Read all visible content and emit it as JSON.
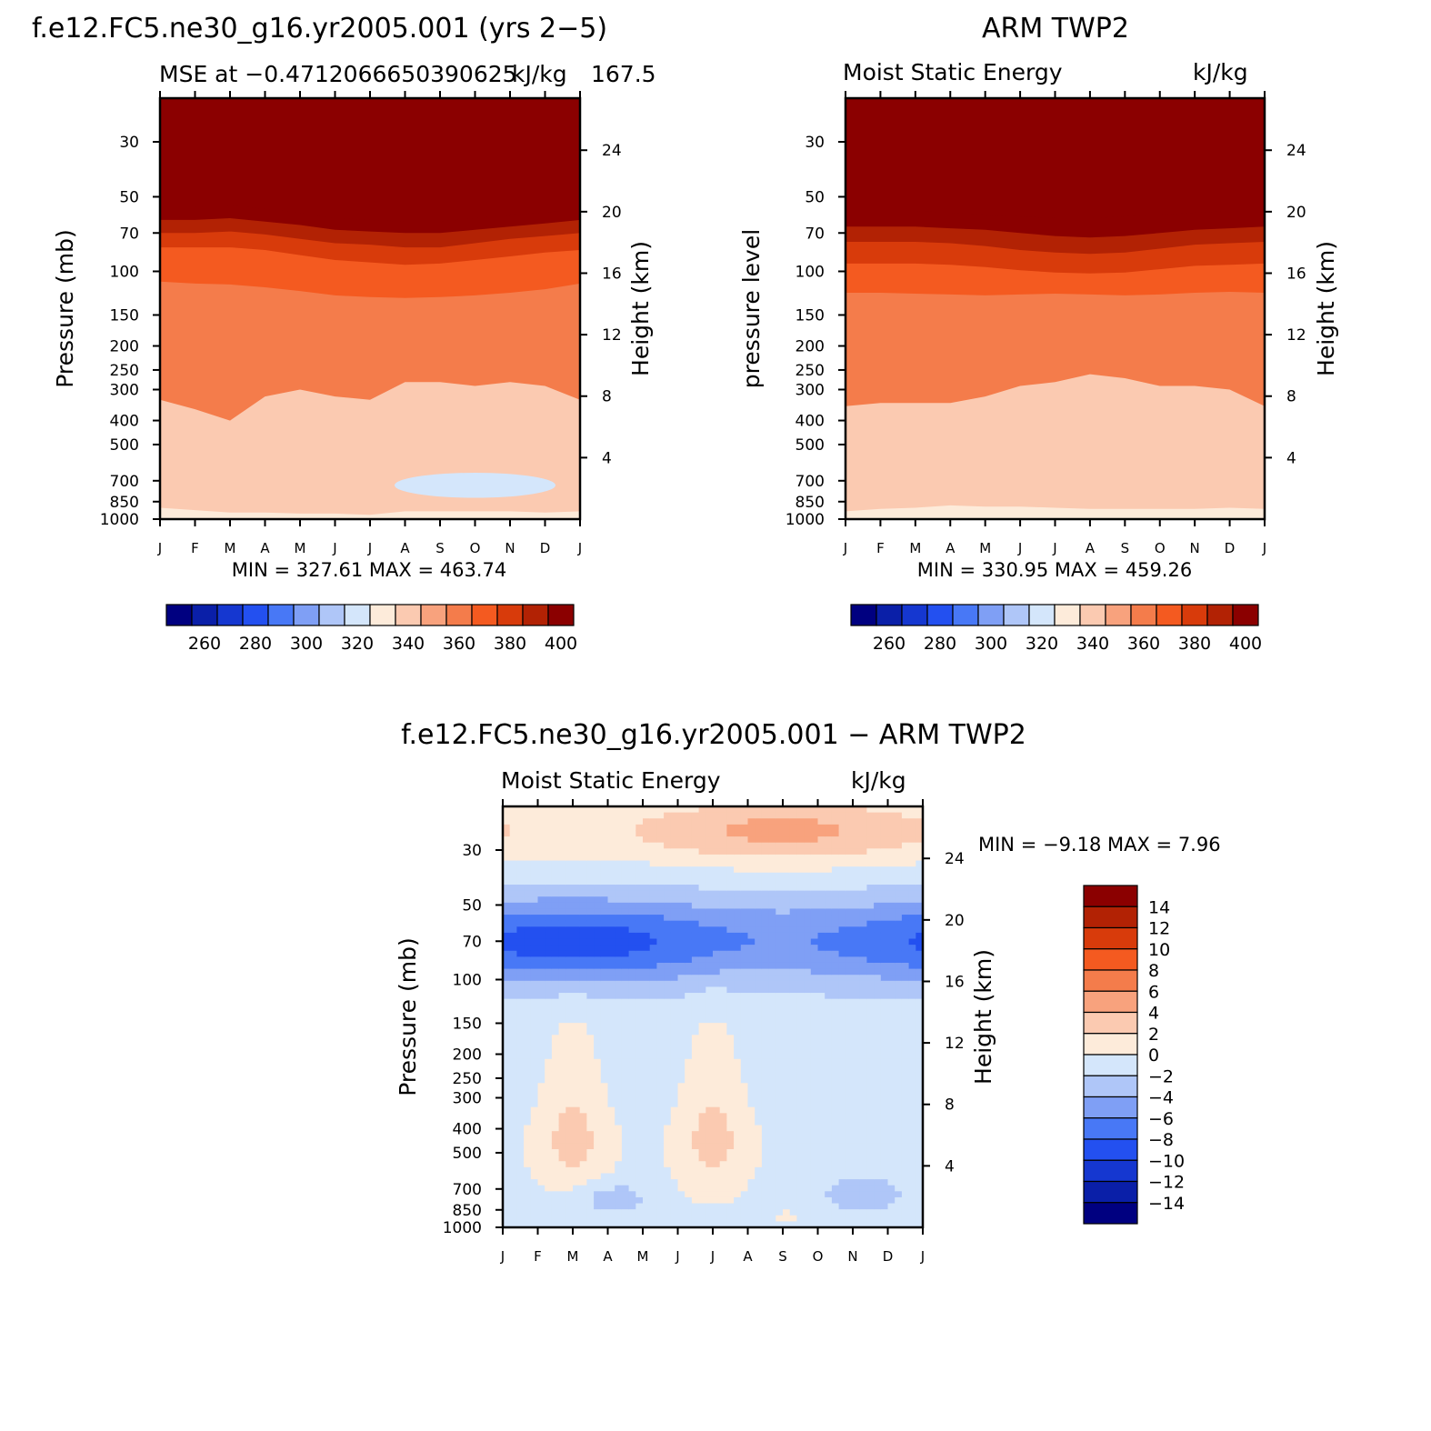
{
  "chart_data": [
    {
      "type": "heatmap",
      "title": "f.e12.FC5.ne30_g16.yr2005.001 (yrs 2−5)",
      "subtitle_left": "MSE at −0.4712066650390625",
      "subtitle_right": "kJ/kg",
      "subtitle_extra": "167.5",
      "ylabel": "Pressure (mb)",
      "y2label": "Height (km)",
      "x": [
        "J",
        "F",
        "M",
        "A",
        "M",
        "J",
        "J",
        "A",
        "S",
        "O",
        "N",
        "D",
        "J"
      ],
      "pressure_ticks": [
        "30",
        "50",
        "70",
        "100",
        "150",
        "200",
        "250",
        "300",
        "400",
        "500",
        "700",
        "850",
        "1000"
      ],
      "height_ticks": [
        "24",
        "20",
        "16",
        "12",
        "8",
        "4"
      ],
      "min_label": "MIN = 327.61 MAX = 463.74",
      "levels": [
        "260",
        "280",
        "300",
        "320",
        "340",
        "360",
        "380",
        "400"
      ],
      "boundaries": [
        {
          "z": 400,
          "p": [
            55,
            55,
            54,
            56,
            58,
            61,
            62,
            63,
            63,
            61,
            59,
            58,
            56
          ]
        },
        {
          "z": 390,
          "p": [
            62,
            62,
            61,
            63,
            65,
            68,
            69,
            70,
            70,
            68,
            66,
            64,
            62
          ]
        },
        {
          "z": 380,
          "p": [
            70,
            70,
            69,
            71,
            74,
            77,
            78,
            80,
            80,
            77,
            74,
            72,
            70
          ]
        },
        {
          "z": 370,
          "p": [
            80,
            80,
            80,
            82,
            86,
            90,
            92,
            94,
            93,
            90,
            87,
            84,
            82
          ]
        },
        {
          "z": 360,
          "p": [
            110,
            112,
            113,
            116,
            120,
            125,
            127,
            128,
            127,
            125,
            122,
            118,
            112
          ]
        },
        {
          "z": 340,
          "p": [
            330,
            360,
            400,
            320,
            300,
            320,
            330,
            280,
            280,
            290,
            280,
            290,
            330
          ]
        },
        {
          "z": 330,
          "p": [
            900,
            920,
            940,
            940,
            950,
            950,
            960,
            930,
            930,
            930,
            930,
            940,
            930
          ]
        }
      ],
      "blobs": [
        {
          "z": 320,
          "months": [
            6.7,
            11.3
          ],
          "p": [
            650,
            820
          ]
        }
      ]
    },
    {
      "type": "heatmap",
      "title": "ARM TWP2",
      "subtitle_left": "Moist Static Energy",
      "subtitle_right": "kJ/kg",
      "ylabel": "pressure level",
      "y2label": "Height (km)",
      "x": [
        "J",
        "F",
        "M",
        "A",
        "M",
        "J",
        "J",
        "A",
        "S",
        "O",
        "N",
        "D",
        "J"
      ],
      "pressure_ticks": [
        "30",
        "50",
        "70",
        "100",
        "150",
        "200",
        "250",
        "300",
        "400",
        "500",
        "700",
        "850",
        "1000"
      ],
      "height_ticks": [
        "24",
        "20",
        "16",
        "12",
        "8",
        "4"
      ],
      "min_label": "MIN = 330.95 MAX = 459.26",
      "levels": [
        "260",
        "280",
        "300",
        "320",
        "340",
        "360",
        "380",
        "400"
      ],
      "boundaries": [
        {
          "z": 400,
          "p": [
            57,
            57,
            57,
            58,
            59,
            60,
            61,
            61,
            60,
            59,
            58,
            57,
            57
          ]
        },
        {
          "z": 390,
          "p": [
            66,
            66,
            66,
            67,
            68,
            70,
            72,
            73,
            72,
            70,
            68,
            67,
            66
          ]
        },
        {
          "z": 380,
          "p": [
            76,
            76,
            76,
            77,
            79,
            82,
            84,
            85,
            84,
            81,
            78,
            77,
            76
          ]
        },
        {
          "z": 370,
          "p": [
            93,
            93,
            93,
            94,
            96,
            99,
            101,
            102,
            101,
            98,
            95,
            94,
            93
          ]
        },
        {
          "z": 360,
          "p": [
            122,
            122,
            123,
            124,
            125,
            124,
            123,
            124,
            125,
            124,
            122,
            121,
            122
          ]
        },
        {
          "z": 340,
          "p": [
            350,
            340,
            340,
            340,
            320,
            290,
            280,
            260,
            270,
            290,
            290,
            300,
            350
          ]
        },
        {
          "z": 330,
          "p": [
            930,
            910,
            900,
            880,
            890,
            890,
            900,
            910,
            910,
            910,
            910,
            900,
            910
          ]
        }
      ],
      "blobs": []
    },
    {
      "type": "heatmap",
      "title": "f.e12.FC5.ne30_g16.yr2005.001 − ARM TWP2",
      "subtitle_left": "Moist Static Energy",
      "subtitle_right": "kJ/kg",
      "ylabel": "Pressure (mb)",
      "y2label": "Height (km)",
      "x": [
        "J",
        "F",
        "M",
        "A",
        "M",
        "J",
        "J",
        "A",
        "S",
        "O",
        "N",
        "D",
        "J"
      ],
      "pressure_ticks": [
        "30",
        "50",
        "70",
        "100",
        "150",
        "200",
        "250",
        "300",
        "400",
        "500",
        "700",
        "850",
        "1000"
      ],
      "height_ticks": [
        "24",
        "20",
        "16",
        "12",
        "8",
        "4"
      ],
      "min_label": "MIN = −9.18 MAX = 7.96",
      "levels": [
        "14",
        "12",
        "10",
        "8",
        "6",
        "4",
        "2",
        "0",
        "−2",
        "−4",
        "−6",
        "−8",
        "−10",
        "−12",
        "−14"
      ]
    }
  ],
  "colors": {
    "mse_scale": [
      "#000080",
      "#0a1fa8",
      "#1537d0",
      "#2350f0",
      "#4878f6",
      "#7f9ff5",
      "#afc6f8",
      "#d4e6fb",
      "#fdebda",
      "#fbcab1",
      "#f8a27d",
      "#f47c4b",
      "#f45a20",
      "#d83b0b",
      "#b22204",
      "#8b0000"
    ],
    "diff_scale": [
      "#8b0000",
      "#b22204",
      "#d83b0b",
      "#f45a20",
      "#f47c4b",
      "#f8a27d",
      "#fbcab1",
      "#fdebda",
      "#d4e6fb",
      "#afc6f8",
      "#7f9ff5",
      "#4878f6",
      "#2350f0",
      "#1537d0",
      "#0a1fa8",
      "#000080"
    ]
  }
}
